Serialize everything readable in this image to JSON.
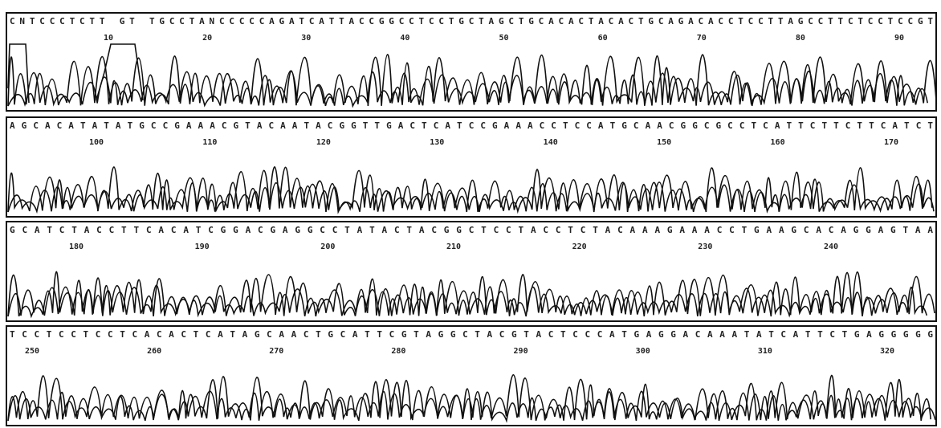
{
  "panels": [
    {
      "sequence": "CNTCCCTCTT GT TGCCTANCCCCCAGATCATTACCGGCCTCCTGCTAGCTGCACACTACACTGCAGACACCTCCTTAGCCTTCTCCTCCGT",
      "positions": [
        "10",
        "20",
        "30",
        "40",
        "50",
        "60",
        "70",
        "80",
        "90"
      ]
    },
    {
      "sequence": "AGCACATATATGCCGAAACGTACAATACGGTTGACTCATCCGAAACCTCCATGCAACGGCGCCTCATTCTTCTTCATCT",
      "positions": [
        "100",
        "110",
        "120",
        "130",
        "140",
        "150",
        "160",
        "170"
      ]
    },
    {
      "sequence": "GCATCTACCTTCACATCGGACGAGGCCTATACTACGGCTCCTACCTCTACAAAGAAACCTGAAGCACAGGAGTAA",
      "positions": [
        "180",
        "190",
        "200",
        "210",
        "220",
        "230",
        "240"
      ]
    },
    {
      "sequence": "TCCTCCTCCTCACACTCATAGCAACTGCATTCGTAGGCTACGTACTCCCATGAGGACAAATATCATTCTGAGGGGG",
      "positions": [
        "250",
        "260",
        "270",
        "280",
        "290",
        "300",
        "310",
        "320"
      ]
    }
  ]
}
